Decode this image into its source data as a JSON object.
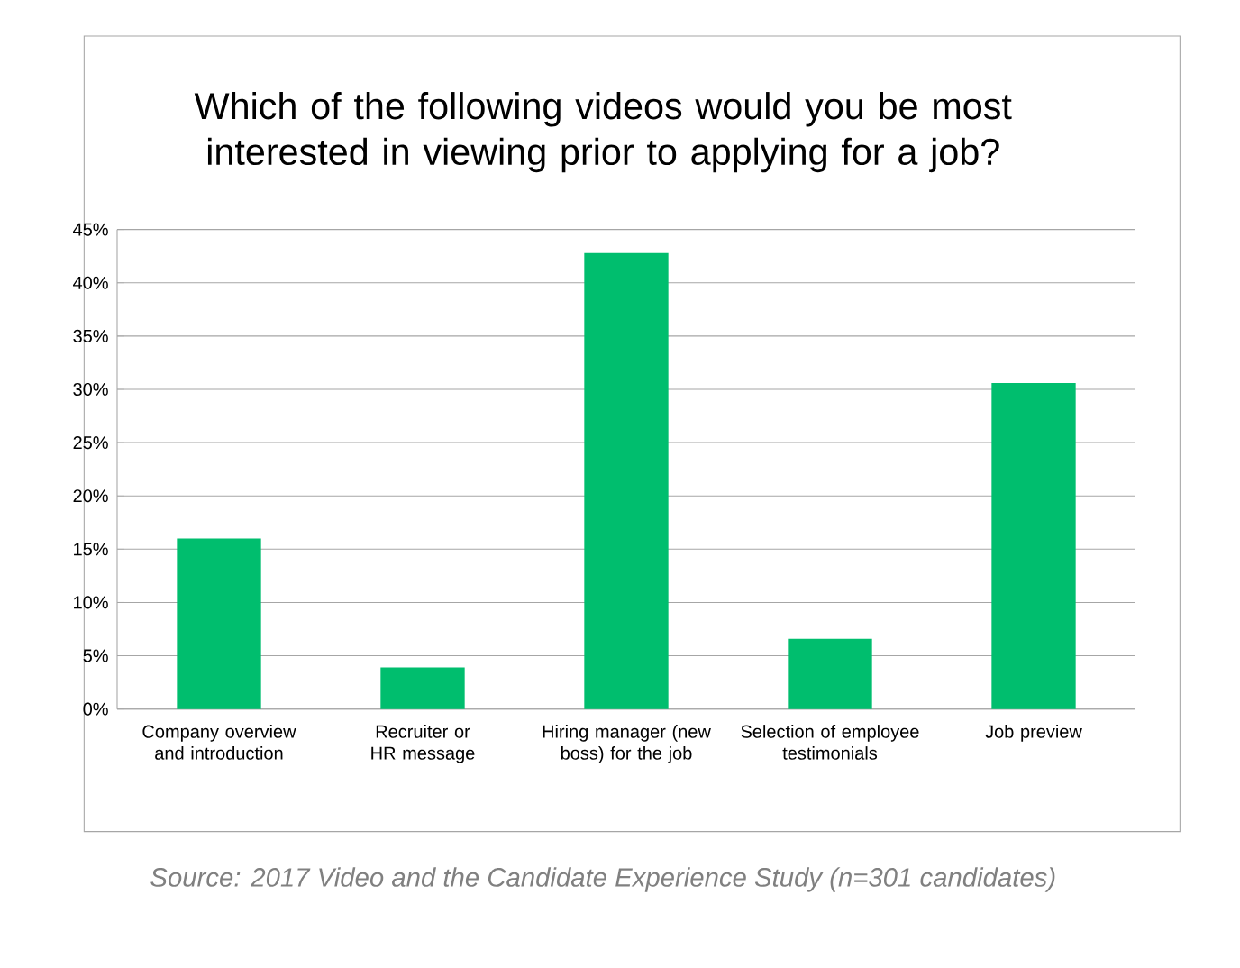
{
  "chart_data": {
    "type": "bar",
    "title": "Which of the following videos would you be most interested in viewing prior to applying for a job?",
    "categories": [
      "Company overview and introduction",
      "Recruiter or HR message",
      "Hiring manager (new boss) for the job",
      "Selection of employee testimonials",
      "Job preview"
    ],
    "values": [
      16,
      3.9,
      42.8,
      6.6,
      30.6
    ],
    "color": "#00be6e",
    "ylim": [
      0,
      45
    ],
    "yticks": [
      {
        "value": 0,
        "label": "0%"
      },
      {
        "value": 5,
        "label": "5%"
      },
      {
        "value": 10,
        "label": "10%"
      },
      {
        "value": 15,
        "label": "15%"
      },
      {
        "value": 20,
        "label": "20%"
      },
      {
        "value": 25,
        "label": "25%"
      },
      {
        "value": 30,
        "label": "30%"
      },
      {
        "value": 35,
        "label": "35%"
      },
      {
        "value": 40,
        "label": "40%"
      },
      {
        "value": 45,
        "label": "45%"
      }
    ],
    "grid": "y",
    "annotations": [
      "Source: 2017 Video and the Candidate Experience Study (n=301 candidates)"
    ]
  }
}
